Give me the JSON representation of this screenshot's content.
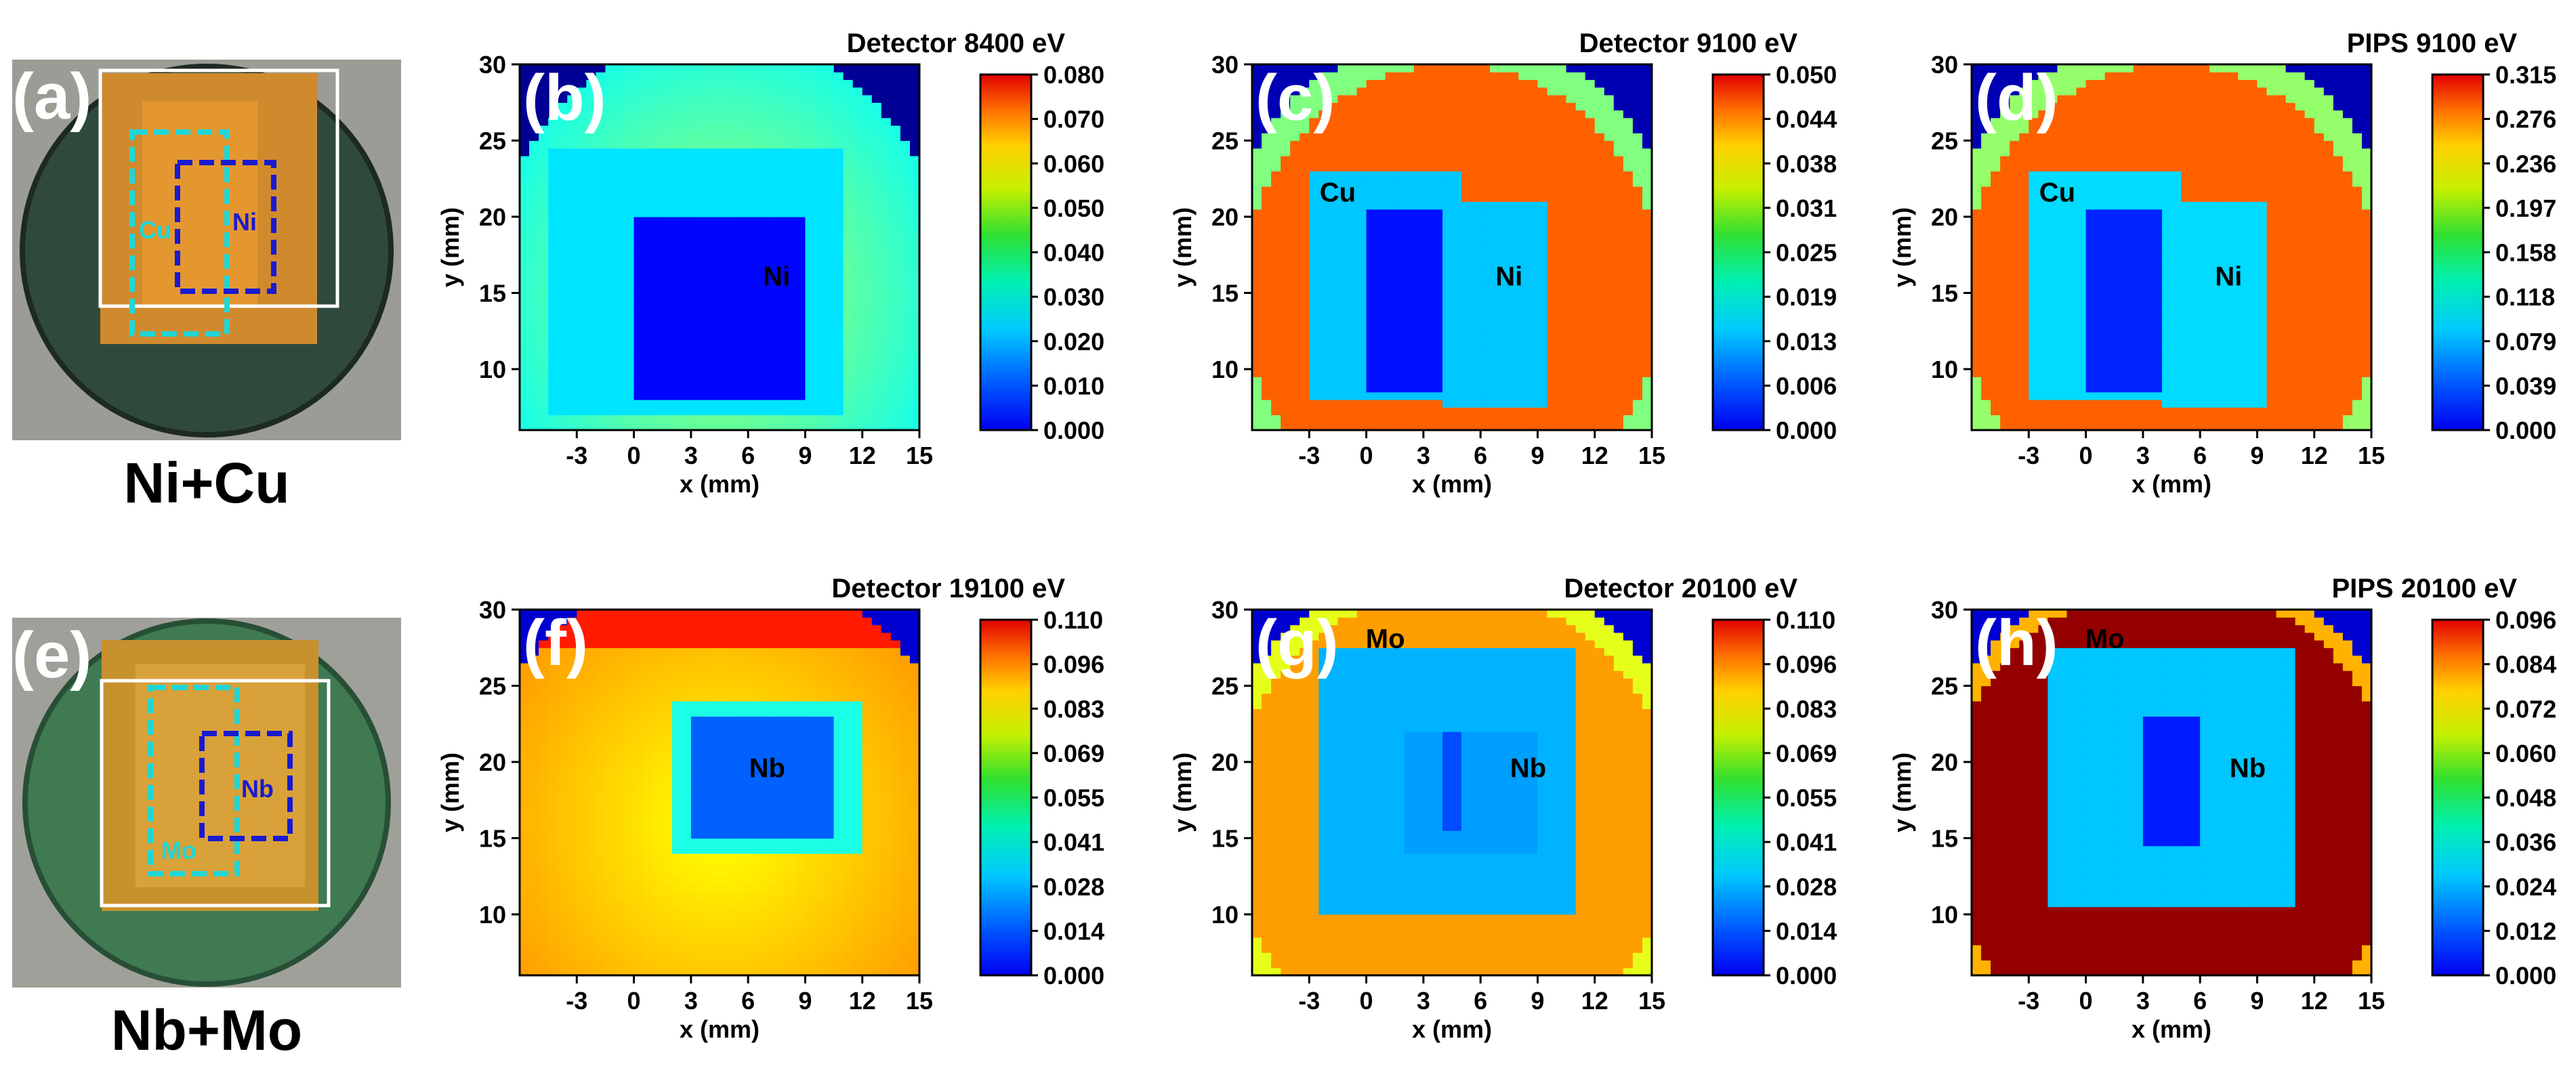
{
  "figure": {
    "samples": [
      {
        "panel_label": "(a)",
        "caption": "Ni+Cu",
        "region_labels": [
          "Cu",
          "Ni"
        ],
        "region_colors": [
          "#1fd6d6",
          "#1a1acf"
        ]
      },
      {
        "panel_label": "(e)",
        "caption": "Nb+Mo",
        "region_labels": [
          "Mo",
          "Nb"
        ],
        "region_colors": [
          "#1fd6d6",
          "#1a1acf"
        ]
      }
    ]
  },
  "chart_data": [
    {
      "type": "heatmap",
      "panel_label": "(b)",
      "title": "Detector 8400 eV",
      "xlabel": "x (mm)",
      "ylabel": "y (mm)",
      "xlim": [
        -6,
        15
      ],
      "ylim": [
        6,
        30
      ],
      "x_ticks": [
        -3,
        0,
        3,
        6,
        9,
        12,
        15
      ],
      "y_ticks": [
        10,
        15,
        20,
        25,
        30
      ],
      "x_tick_labels": [
        "-3",
        "0",
        "3",
        "6",
        "9",
        "12",
        "15"
      ],
      "y_tick_labels": [
        "10",
        "15",
        "20",
        "25",
        "30"
      ],
      "colorbar_range": [
        0,
        0.08
      ],
      "colorbar_ticks": [
        "0.000",
        "0.010",
        "0.020",
        "0.030",
        "0.040",
        "0.050",
        "0.060",
        "0.070",
        "0.080"
      ],
      "annotations": [
        {
          "text": "Ni",
          "x": 7.5,
          "y": 15.5
        }
      ]
    },
    {
      "type": "heatmap",
      "panel_label": "(c)",
      "title": "Detector 9100 eV",
      "xlabel": "x (mm)",
      "ylabel": "y (mm)",
      "xlim": [
        -6,
        15
      ],
      "ylim": [
        6,
        30
      ],
      "x_ticks": [
        -3,
        0,
        3,
        6,
        9,
        12,
        15
      ],
      "y_ticks": [
        10,
        15,
        20,
        25,
        30
      ],
      "x_tick_labels": [
        "-3",
        "0",
        "3",
        "6",
        "9",
        "12",
        "15"
      ],
      "y_tick_labels": [
        "10",
        "15",
        "20",
        "25",
        "30"
      ],
      "colorbar_range": [
        0,
        0.05
      ],
      "colorbar_ticks": [
        "0.000",
        "0.006",
        "0.013",
        "0.019",
        "0.025",
        "0.031",
        "0.038",
        "0.044",
        "0.050"
      ],
      "annotations": [
        {
          "text": "Cu",
          "x": -1.5,
          "y": 21
        },
        {
          "text": "Ni",
          "x": 7.5,
          "y": 15.5
        }
      ]
    },
    {
      "type": "heatmap",
      "panel_label": "(d)",
      "title": "PIPS 9100 eV",
      "xlabel": "x (mm)",
      "ylabel": "y (mm)",
      "xlim": [
        -6,
        15
      ],
      "ylim": [
        6,
        30
      ],
      "x_ticks": [
        -3,
        0,
        3,
        6,
        9,
        12,
        15
      ],
      "y_ticks": [
        10,
        15,
        20,
        25,
        30
      ],
      "x_tick_labels": [
        "-3",
        "0",
        "3",
        "6",
        "9",
        "12",
        "15"
      ],
      "y_tick_labels": [
        "10",
        "15",
        "20",
        "25",
        "30"
      ],
      "colorbar_range": [
        0,
        0.315
      ],
      "colorbar_ticks": [
        "0.000",
        "0.039",
        "0.079",
        "0.118",
        "0.158",
        "0.197",
        "0.236",
        "0.276",
        "0.315"
      ],
      "annotations": [
        {
          "text": "Cu",
          "x": -1.5,
          "y": 21
        },
        {
          "text": "Ni",
          "x": 7.5,
          "y": 15.5
        }
      ]
    },
    {
      "type": "heatmap",
      "panel_label": "(f)",
      "title": "Detector 19100 eV",
      "xlabel": "x (mm)",
      "ylabel": "y (mm)",
      "xlim": [
        -6,
        15
      ],
      "ylim": [
        6,
        30
      ],
      "x_ticks": [
        -3,
        0,
        3,
        6,
        9,
        12,
        15
      ],
      "y_ticks": [
        10,
        15,
        20,
        25,
        30
      ],
      "x_tick_labels": [
        "-3",
        "0",
        "3",
        "6",
        "9",
        "12",
        "15"
      ],
      "y_tick_labels": [
        "10",
        "15",
        "20",
        "25",
        "30"
      ],
      "colorbar_range": [
        0,
        0.11
      ],
      "colorbar_ticks": [
        "0.000",
        "0.014",
        "0.028",
        "0.041",
        "0.055",
        "0.069",
        "0.083",
        "0.096",
        "0.110"
      ],
      "annotations": [
        {
          "text": "Nb",
          "x": 7,
          "y": 19
        }
      ]
    },
    {
      "type": "heatmap",
      "panel_label": "(g)",
      "title": "Detector 20100 eV",
      "xlabel": "x (mm)",
      "ylabel": "y (mm)",
      "xlim": [
        -6,
        15
      ],
      "ylim": [
        6,
        30
      ],
      "x_ticks": [
        -3,
        0,
        3,
        6,
        9,
        12,
        15
      ],
      "y_ticks": [
        10,
        15,
        20,
        25,
        30
      ],
      "x_tick_labels": [
        "-3",
        "0",
        "3",
        "6",
        "9",
        "12",
        "15"
      ],
      "y_tick_labels": [
        "10",
        "15",
        "20",
        "25",
        "30"
      ],
      "colorbar_range": [
        0,
        0.11
      ],
      "colorbar_ticks": [
        "0.000",
        "0.014",
        "0.028",
        "0.041",
        "0.055",
        "0.069",
        "0.083",
        "0.096",
        "0.110"
      ],
      "annotations": [
        {
          "text": "Mo",
          "x": 1,
          "y": 27.5
        },
        {
          "text": "Nb",
          "x": 8.5,
          "y": 19
        }
      ]
    },
    {
      "type": "heatmap",
      "panel_label": "(h)",
      "title": "PIPS 20100 eV",
      "xlabel": "x (mm)",
      "ylabel": "y (mm)",
      "xlim": [
        -6,
        15
      ],
      "ylim": [
        6,
        30
      ],
      "x_ticks": [
        -3,
        0,
        3,
        6,
        9,
        12,
        15
      ],
      "y_ticks": [
        10,
        15,
        20,
        25,
        30
      ],
      "x_tick_labels": [
        "-3",
        "0",
        "3",
        "6",
        "9",
        "12",
        "15"
      ],
      "y_tick_labels": [
        "10",
        "15",
        "20",
        "25",
        "30"
      ],
      "colorbar_range": [
        0,
        0.096
      ],
      "colorbar_ticks": [
        "0.000",
        "0.012",
        "0.024",
        "0.036",
        "0.048",
        "0.060",
        "0.072",
        "0.084",
        "0.096"
      ],
      "annotations": [
        {
          "text": "Mo",
          "x": 1,
          "y": 27.5
        },
        {
          "text": "Nb",
          "x": 8.5,
          "y": 19
        }
      ]
    }
  ]
}
